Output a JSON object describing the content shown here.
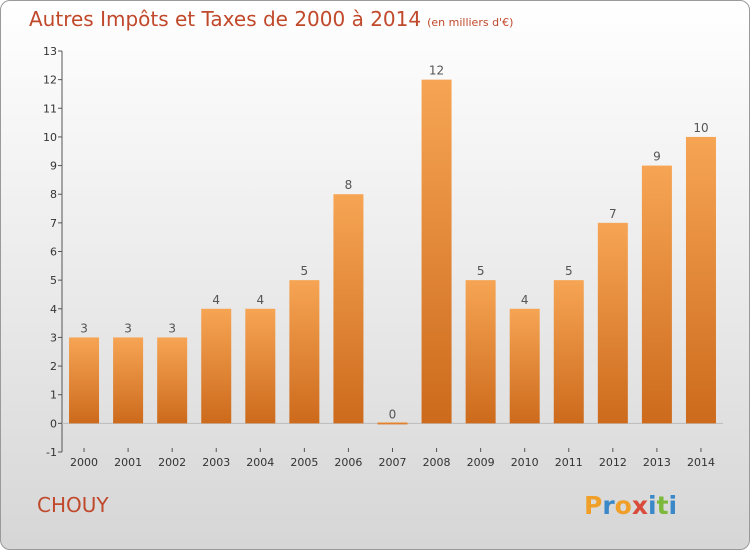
{
  "header": {
    "title": "Autres Impôts et Taxes de 2000 à 2014",
    "subtitle": "(en milliers d'€)"
  },
  "place": "CHOUY",
  "logo": {
    "letters": [
      {
        "char": "P",
        "color": "#f0a028"
      },
      {
        "char": "r",
        "color": "#3a88c8"
      },
      {
        "char": "o",
        "color": "#f0a028"
      },
      {
        "char": "x",
        "color": "#d84a3a"
      },
      {
        "char": "i",
        "color": "#3a88c8"
      },
      {
        "char": "t",
        "color": "#7cb83a"
      },
      {
        "char": "i",
        "color": "#3a88c8"
      }
    ]
  },
  "colors": {
    "bar_light": "#f6a554",
    "bar_dark": "#cd6a1c",
    "text": "#c0492b"
  },
  "chart_data": {
    "type": "bar",
    "title": "Autres Impôts et Taxes de 2000 à 2014",
    "subtitle": "(en milliers d'€)",
    "categories": [
      "2000",
      "2001",
      "2002",
      "2003",
      "2004",
      "2005",
      "2006",
      "2007",
      "2008",
      "2009",
      "2010",
      "2011",
      "2012",
      "2013",
      "2014"
    ],
    "values": [
      3,
      3,
      3,
      4,
      4,
      5,
      8,
      0,
      12,
      5,
      4,
      5,
      7,
      9,
      10
    ],
    "ylim": [
      -1,
      13
    ],
    "yticks": [
      -1,
      0,
      1,
      2,
      3,
      4,
      5,
      6,
      7,
      8,
      9,
      10,
      11,
      12,
      13
    ],
    "grid": false,
    "legend": "none"
  }
}
